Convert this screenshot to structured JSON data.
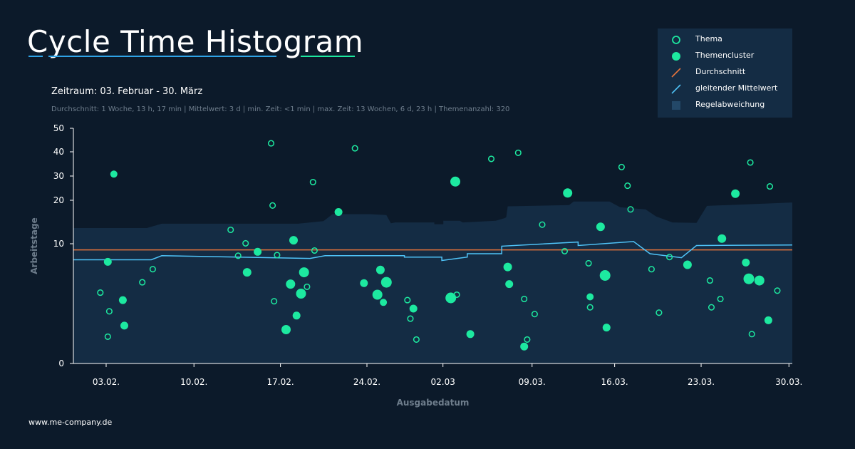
{
  "header": {
    "title": "Cycle Time Histogram",
    "zeitraum": "Zeitraum: 03. Februar - 30. März",
    "stats": "Durchschnitt: 1 Woche, 13 h, 17 min | Mittelwert: 3 d | min. Zeit: <1 min | max. Zeit: 13 Wochen, 6 d, 23 h | Themenanzahl: 320"
  },
  "legend": {
    "items": [
      {
        "label": "Thema",
        "icon": "hollow-circle-icon"
      },
      {
        "label": "Themencluster",
        "icon": "filled-circle-icon"
      },
      {
        "label": "Durchschnitt",
        "icon": "orange-line-icon"
      },
      {
        "label": "gleitender Mittelwert",
        "icon": "blue-line-icon"
      },
      {
        "label": "Regelabweichung",
        "icon": "shaded-square-icon"
      }
    ]
  },
  "footer": {
    "url": "www.me-company.de"
  },
  "colors": {
    "background": "#0c1a2a",
    "band": "#142c44",
    "point": "#1de9a0",
    "average": "#e8743b",
    "moving_average": "#4fc3f7",
    "axis_label": "#6e7d8c"
  },
  "chart_data": {
    "type": "scatter",
    "title": "Cycle Time Histogram",
    "xlabel": "Ausgabedatum",
    "ylabel": "Arbeitstage",
    "x_ticks": [
      "03.02.",
      "10.02.",
      "17.02.",
      "24.02.",
      "02.03",
      "09.03.",
      "16.03.",
      "23.03.",
      "30.03."
    ],
    "y_ticks": [
      0,
      10,
      20,
      30,
      40,
      50
    ],
    "y_scale": "nonlinear (sqrt-like)",
    "ylim": [
      0,
      50
    ],
    "grid": false,
    "legend_position": "top-right",
    "average": 9,
    "series": [
      {
        "name": "Thema",
        "style": "hollow",
        "points": [
          [
            1.8,
            3.5
          ],
          [
            2.3,
            0.5
          ],
          [
            2.4,
            1.9
          ],
          [
            4.6,
            4.6
          ],
          [
            5.3,
            6.2
          ],
          [
            10.5,
            13.2
          ],
          [
            11.0,
            8.1
          ],
          [
            11.5,
            10.1
          ],
          [
            13.2,
            43.6
          ],
          [
            13.3,
            18.8
          ],
          [
            13.4,
            2.7
          ],
          [
            13.6,
            8.2
          ],
          [
            15.6,
            4.1
          ],
          [
            16.0,
            27.5
          ],
          [
            16.1,
            8.9
          ],
          [
            18.8,
            41.5
          ],
          [
            22.3,
            2.8
          ],
          [
            22.5,
            1.4
          ],
          [
            22.9,
            0.4
          ],
          [
            25.6,
            3.3
          ],
          [
            27.9,
            37.1
          ],
          [
            29.7,
            39.6
          ],
          [
            30.1,
            2.9
          ],
          [
            30.3,
            0.4
          ],
          [
            30.8,
            1.7
          ],
          [
            31.3,
            14.4
          ],
          [
            32.8,
            8.8
          ],
          [
            34.4,
            7.0
          ],
          [
            34.5,
            2.2
          ],
          [
            36.6,
            33.7
          ],
          [
            37.0,
            26.0
          ],
          [
            37.2,
            17.9
          ],
          [
            38.6,
            6.2
          ],
          [
            39.1,
            1.8
          ],
          [
            39.8,
            7.9
          ],
          [
            42.5,
            4.8
          ],
          [
            42.6,
            2.2
          ],
          [
            43.2,
            2.9
          ],
          [
            45.2,
            35.6
          ],
          [
            45.3,
            0.6
          ],
          [
            46.5,
            25.7
          ],
          [
            47.0,
            3.7
          ]
        ]
      },
      {
        "name": "Themencluster",
        "style": "filled",
        "points": [
          [
            2.3,
            7.2
          ],
          [
            2.7,
            30.8
          ],
          [
            3.3,
            2.8
          ],
          [
            3.4,
            1.0
          ],
          [
            11.6,
            5.8
          ],
          [
            12.3,
            8.7
          ],
          [
            14.2,
            0.8
          ],
          [
            14.5,
            4.4
          ],
          [
            14.7,
            10.8
          ],
          [
            14.9,
            1.6
          ],
          [
            15.2,
            3.4
          ],
          [
            15.4,
            5.8
          ],
          [
            17.7,
            17.3
          ],
          [
            19.4,
            4.5
          ],
          [
            20.3,
            3.3
          ],
          [
            20.5,
            6.1
          ],
          [
            20.7,
            2.6
          ],
          [
            20.9,
            4.6
          ],
          [
            22.7,
            2.1
          ],
          [
            25.2,
            3.0
          ],
          [
            25.5,
            27.7
          ],
          [
            26.5,
            0.6
          ],
          [
            29.0,
            6.5
          ],
          [
            29.1,
            4.4
          ],
          [
            30.1,
            0.2
          ],
          [
            33.0,
            23.0
          ],
          [
            34.5,
            3.1
          ],
          [
            35.2,
            13.9
          ],
          [
            35.5,
            5.4
          ],
          [
            35.6,
            0.9
          ],
          [
            41.0,
            6.8
          ],
          [
            43.3,
            11.2
          ],
          [
            44.2,
            22.7
          ],
          [
            44.9,
            7.1
          ],
          [
            45.1,
            5.0
          ],
          [
            45.8,
            4.8
          ],
          [
            46.4,
            1.3
          ]
        ]
      },
      {
        "name": "gleitender Mittelwert",
        "style": "line",
        "points": [
          [
            0,
            7.5
          ],
          [
            5.2,
            7.5
          ],
          [
            5.9,
            8.1
          ],
          [
            15.8,
            7.7
          ],
          [
            16.8,
            8.1
          ],
          [
            22.1,
            8.1
          ],
          [
            22.1,
            7.9
          ],
          [
            24.6,
            7.9
          ],
          [
            24.6,
            7.4
          ],
          [
            26.3,
            7.9
          ],
          [
            26.3,
            8.4
          ],
          [
            28.6,
            8.4
          ],
          [
            28.6,
            9.6
          ],
          [
            33.7,
            10.4
          ],
          [
            33.7,
            9.7
          ],
          [
            37.4,
            10.5
          ],
          [
            38.5,
            8.4
          ],
          [
            40.6,
            7.8
          ],
          [
            41.6,
            9.7
          ],
          [
            48,
            9.8
          ]
        ]
      },
      {
        "name": "Regelabweichung",
        "style": "band",
        "points": [
          [
            0,
            13.6
          ],
          [
            4.9,
            13.6
          ],
          [
            5.9,
            14.6
          ],
          [
            15.0,
            14.6
          ],
          [
            16.7,
            15.2
          ],
          [
            17.3,
            16.8
          ],
          [
            19.8,
            16.8
          ],
          [
            20.9,
            16.6
          ],
          [
            21.2,
            14.7
          ],
          [
            21.5,
            14.9
          ],
          [
            24.1,
            14.9
          ],
          [
            24.1,
            14.5
          ],
          [
            24.7,
            14.5
          ],
          [
            24.7,
            15.3
          ],
          [
            25.8,
            15.3
          ],
          [
            26.0,
            14.9
          ],
          [
            28.2,
            15.3
          ],
          [
            28.8,
            15.9
          ],
          [
            28.9,
            16.1
          ],
          [
            29.0,
            18.6
          ],
          [
            33.1,
            18.9
          ],
          [
            33.4,
            19.7
          ],
          [
            35.8,
            19.7
          ],
          [
            36.5,
            18.4
          ],
          [
            38.2,
            17.9
          ],
          [
            38.9,
            16.3
          ],
          [
            40.0,
            14.9
          ],
          [
            41.6,
            14.8
          ],
          [
            42.3,
            18.7
          ],
          [
            48,
            19.5
          ]
        ]
      }
    ]
  }
}
